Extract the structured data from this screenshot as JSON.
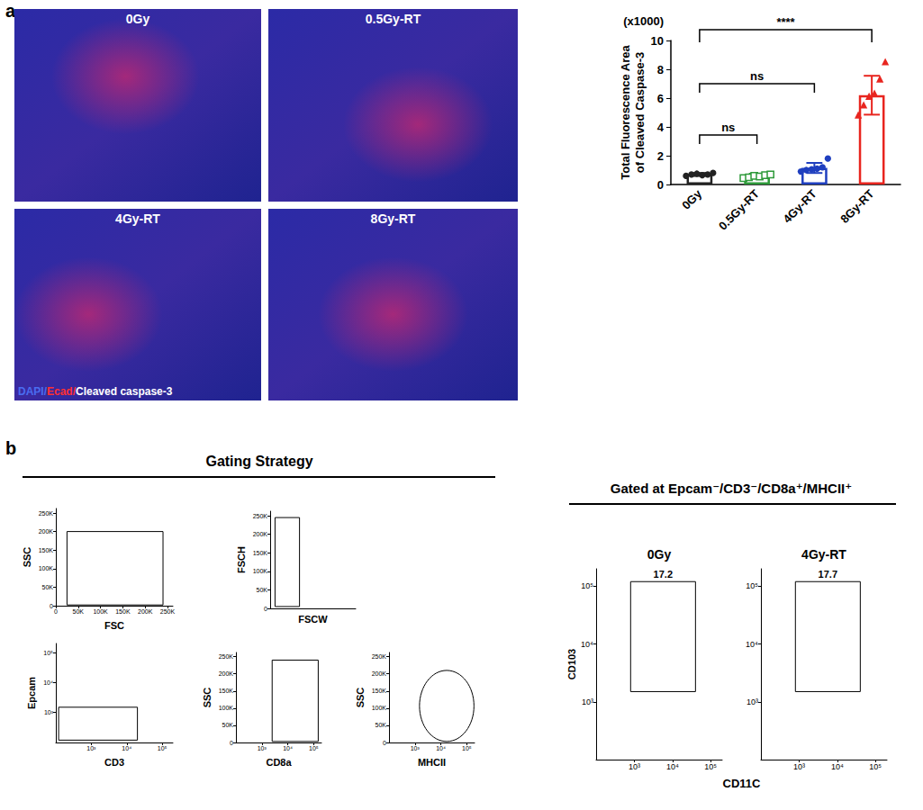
{
  "figure": {
    "panel_a_label": "a",
    "panel_b_label": "b",
    "images": [
      {
        "title": "0Gy"
      },
      {
        "title": "0.5Gy-RT"
      },
      {
        "title": "4Gy-RT"
      },
      {
        "title": "8Gy-RT"
      }
    ],
    "image_stain_legend": [
      {
        "text": "DAPI/",
        "color": "#4a6cf0"
      },
      {
        "text": "Ecad/",
        "color": "#ff3030"
      },
      {
        "text": "Cleaved caspase-3",
        "color": "#ffffff"
      }
    ],
    "gating_title": "Gating Strategy",
    "gated_title": "Gated at Epcam⁻/CD3⁻/CD8a⁺/MHCII⁺",
    "shared_xlabel": "CD11C"
  },
  "chart_data": [
    {
      "type": "bar",
      "ylabel": "Total Fluorescence Area of Cleaved Caspase-3",
      "yscale_label": "(x1000)",
      "categories": [
        "0Gy",
        "0.5Gy-RT",
        "4Gy-RT",
        "8Gy-RT"
      ],
      "values": [
        0.7,
        0.6,
        1.15,
        6.2
      ],
      "errors": [
        0.1,
        0.15,
        0.35,
        1.35
      ],
      "colors": [
        "#222222",
        "#2e9a3a",
        "#1f3fbf",
        "#e8251f"
      ],
      "points": [
        {
          "values": [
            0.6,
            0.7,
            0.75,
            0.65,
            0.7,
            0.8
          ],
          "marker": "circle"
        },
        {
          "values": [
            0.45,
            0.5,
            0.6,
            0.55,
            0.65,
            0.7
          ],
          "marker": "square_open"
        },
        {
          "values": [
            0.9,
            1.0,
            1.05,
            1.1,
            1.2,
            1.8
          ],
          "marker": "circle"
        },
        {
          "values": [
            4.8,
            5.5,
            6.1,
            6.3,
            7.3,
            8.5
          ],
          "marker": "triangle"
        }
      ],
      "ylim": [
        0,
        10
      ],
      "yticks": [
        0,
        2,
        4,
        6,
        8,
        10
      ],
      "annotations": [
        {
          "from": "0Gy",
          "to": "0.5Gy-RT",
          "text": "ns"
        },
        {
          "from": "0Gy",
          "to": "4Gy-RT",
          "text": "ns"
        },
        {
          "from": "0Gy",
          "to": "8Gy-RT",
          "text": "****"
        }
      ]
    },
    {
      "type": "density",
      "xlabel": "FSC",
      "ylabel": "SSC",
      "xlim": [
        0,
        262144
      ],
      "ylim": [
        0,
        262144
      ],
      "xticks": [
        0,
        {
          "value": 50000,
          "label": "50K"
        },
        {
          "value": 100000,
          "label": "100K"
        },
        {
          "value": 150000,
          "label": "150K"
        },
        {
          "value": 200000,
          "label": "200K"
        },
        {
          "value": 250000,
          "label": "250K"
        }
      ],
      "yticks": [
        0,
        {
          "value": 50000,
          "label": "50K"
        },
        {
          "value": 100000,
          "label": "100K"
        },
        {
          "value": 150000,
          "label": "150K"
        },
        {
          "value": 200000,
          "label": "200K"
        },
        {
          "value": 250000,
          "label": "250K"
        }
      ],
      "gates": [
        {
          "shape": "rect",
          "x": [
            25000,
            240000
          ],
          "y": [
            2000,
            200000
          ]
        }
      ]
    },
    {
      "type": "density",
      "xlabel": "FSCW",
      "ylabel": "FSCH",
      "xlim": [
        0,
        262144
      ],
      "ylim": [
        0,
        262144
      ],
      "tick_labels": "y",
      "yticks": [
        0,
        {
          "value": 50000,
          "label": "50K"
        },
        {
          "value": 100000,
          "label": "100K"
        },
        {
          "value": 150000,
          "label": "150K"
        },
        {
          "value": 200000,
          "label": "200K"
        },
        {
          "value": 250000,
          "label": "250K"
        }
      ],
      "gates": [
        {
          "shape": "rect",
          "x": [
            15000,
            90000
          ],
          "y": [
            5000,
            245000
          ]
        }
      ]
    },
    {
      "type": "density",
      "xlabel": "CD3",
      "ylabel": "Epcam",
      "log": true,
      "xlim": [
        100,
        200000
      ],
      "ylim": [
        100,
        200000
      ],
      "xticks": [
        {
          "value": 1000,
          "label": "10³"
        },
        {
          "value": 10000,
          "label": "10⁴"
        },
        {
          "value": 100000,
          "label": "10⁵"
        }
      ],
      "yticks": [
        {
          "value": 1000,
          "label": "10³"
        },
        {
          "value": 10000,
          "label": "10⁴"
        },
        {
          "value": 100000,
          "label": "10⁵"
        }
      ],
      "gates": [
        {
          "shape": "rect",
          "x": [
            120,
            20000
          ],
          "y": [
            120,
            1500
          ]
        }
      ]
    },
    {
      "type": "density",
      "xlabel": "CD8a",
      "ylabel": "SSC",
      "log": "x",
      "xlim": [
        100,
        200000
      ],
      "ylim": [
        0,
        262144
      ],
      "xticks": [
        {
          "value": 1000,
          "label": "10³"
        },
        {
          "value": 10000,
          "label": "10⁴"
        },
        {
          "value": 100000,
          "label": "10⁵"
        }
      ],
      "yticks": [
        0,
        {
          "value": 50000,
          "label": "50K"
        },
        {
          "value": 100000,
          "label": "100K"
        },
        {
          "value": 150000,
          "label": "150K"
        },
        {
          "value": 200000,
          "label": "200K"
        },
        {
          "value": 250000,
          "label": "250K"
        }
      ],
      "gates": [
        {
          "shape": "rect",
          "x": [
            2500,
            150000
          ],
          "y": [
            3000,
            240000
          ]
        }
      ]
    },
    {
      "type": "density",
      "xlabel": "MHCII",
      "ylabel": "SSC",
      "log": "x",
      "xlim": [
        100,
        200000
      ],
      "ylim": [
        0,
        262144
      ],
      "xticks": [
        {
          "value": 1000,
          "label": "10³"
        },
        {
          "value": 10000,
          "label": "10⁴"
        },
        {
          "value": 100000,
          "label": "10⁵"
        }
      ],
      "yticks": [
        0,
        {
          "value": 50000,
          "label": "50K"
        },
        {
          "value": 100000,
          "label": "100K"
        },
        {
          "value": 150000,
          "label": "150K"
        },
        {
          "value": 200000,
          "label": "200K"
        },
        {
          "value": 250000,
          "label": "250K"
        }
      ],
      "gates": [
        {
          "shape": "ellipse",
          "x": [
            1500,
            190000
          ],
          "y": [
            3000,
            210000
          ]
        }
      ]
    },
    {
      "type": "contour",
      "title": "0Gy",
      "ylabel": "CD103",
      "log": true,
      "xlim": [
        100,
        200000
      ],
      "ylim": [
        100,
        200000
      ],
      "xticks": [
        {
          "value": 1000,
          "label": "10³"
        },
        {
          "value": 10000,
          "label": "10⁴"
        },
        {
          "value": 100000,
          "label": "10⁵"
        }
      ],
      "yticks": [
        {
          "value": 1000,
          "label": "10³"
        },
        {
          "value": 10000,
          "label": "10⁴"
        },
        {
          "value": 100000,
          "label": "10⁵"
        }
      ],
      "gates": [
        {
          "shape": "rect",
          "x": [
            800,
            40000
          ],
          "y": [
            1500,
            120000
          ],
          "value": 17.2
        }
      ]
    },
    {
      "type": "contour",
      "title": "4Gy-RT",
      "log": true,
      "xlim": [
        100,
        200000
      ],
      "ylim": [
        100,
        200000
      ],
      "xticks": [
        {
          "value": 1000,
          "label": "10³"
        },
        {
          "value": 10000,
          "label": "10⁴"
        },
        {
          "value": 100000,
          "label": "10⁵"
        }
      ],
      "yticks": [
        {
          "value": 1000,
          "label": "10³"
        },
        {
          "value": 10000,
          "label": "10⁴"
        },
        {
          "value": 100000,
          "label": "10⁵"
        }
      ],
      "gates": [
        {
          "shape": "rect",
          "x": [
            800,
            40000
          ],
          "y": [
            1500,
            120000
          ],
          "value": 17.7
        }
      ]
    }
  ]
}
